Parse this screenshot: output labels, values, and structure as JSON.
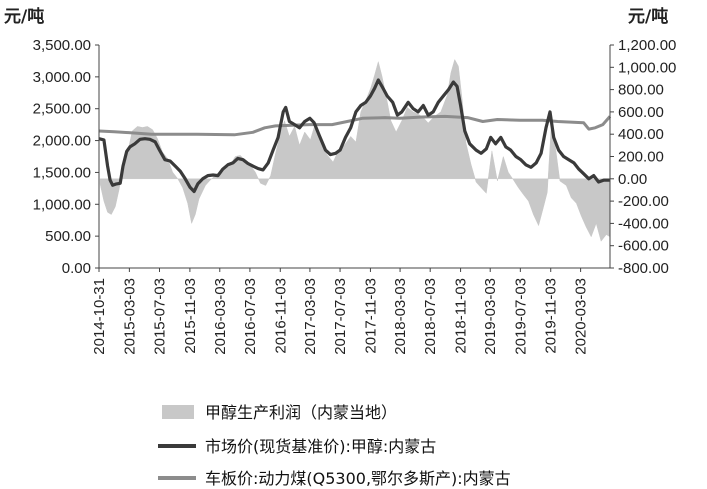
{
  "chart_data": {
    "type": "line",
    "left_unit": "元/吨",
    "right_unit": "元/吨",
    "y_left": {
      "min": 0,
      "max": 3500,
      "ticks": [
        "0.00",
        "500.00",
        "1,000.00",
        "1,500.00",
        "2,000.00",
        "2,500.00",
        "3,000.00",
        "3,500.00"
      ]
    },
    "y_right": {
      "min": -800,
      "max": 1200,
      "ticks": [
        "-800.00",
        "-600.00",
        "-400.00",
        "-200.00",
        "0.00",
        "200.00",
        "400.00",
        "600.00",
        "800.00",
        "1,000.00",
        "1,200.00"
      ]
    },
    "x": {
      "start": "2014-10-31",
      "end": "2020-06-30",
      "tick_labels": [
        "2014-10-31",
        "2015-03-03",
        "2015-07-03",
        "2015-11-03",
        "2016-03-03",
        "2016-07-03",
        "2016-11-03",
        "2017-03-03",
        "2017-07-03",
        "2017-11-03",
        "2018-03-03",
        "2018-07-03",
        "2018-11-03",
        "2019-03-03",
        "2019-07-03",
        "2019-11-03",
        "2020-03-03"
      ]
    },
    "grid": false,
    "legend_position": "bottom",
    "series": [
      {
        "name": "甲醇生产利润（内蒙当地）",
        "kind": "area",
        "axis": "right",
        "color": "#c8c8c8",
        "points": [
          [
            "2014-11-05",
            -50
          ],
          [
            "2014-11-20",
            -200
          ],
          [
            "2014-12-05",
            -300
          ],
          [
            "2014-12-20",
            -320
          ],
          [
            "2015-01-05",
            -250
          ],
          [
            "2015-01-20",
            -100
          ],
          [
            "2015-02-05",
            100
          ],
          [
            "2015-02-25",
            250
          ],
          [
            "2015-03-15",
            430
          ],
          [
            "2015-04-05",
            470
          ],
          [
            "2015-04-25",
            460
          ],
          [
            "2015-05-15",
            470
          ],
          [
            "2015-06-05",
            440
          ],
          [
            "2015-06-25",
            360
          ],
          [
            "2015-07-15",
            240
          ],
          [
            "2015-08-05",
            180
          ],
          [
            "2015-08-25",
            60
          ],
          [
            "2015-09-15",
            0
          ],
          [
            "2015-10-05",
            -80
          ],
          [
            "2015-10-25",
            -220
          ],
          [
            "2015-11-10",
            -400
          ],
          [
            "2015-11-25",
            -320
          ],
          [
            "2015-12-10",
            -180
          ],
          [
            "2016-01-05",
            -60
          ],
          [
            "2016-01-25",
            -10
          ],
          [
            "2016-02-20",
            40
          ],
          [
            "2016-03-15",
            100
          ],
          [
            "2016-04-10",
            110
          ],
          [
            "2016-05-05",
            200
          ],
          [
            "2016-05-25",
            210
          ],
          [
            "2016-06-15",
            160
          ],
          [
            "2016-07-05",
            120
          ],
          [
            "2016-07-25",
            60
          ],
          [
            "2016-08-15",
            -40
          ],
          [
            "2016-09-05",
            -60
          ],
          [
            "2016-09-25",
            30
          ],
          [
            "2016-10-15",
            230
          ],
          [
            "2016-11-05",
            420
          ],
          [
            "2016-11-20",
            520
          ],
          [
            "2016-12-10",
            380
          ],
          [
            "2016-12-31",
            470
          ],
          [
            "2017-01-20",
            300
          ],
          [
            "2017-02-10",
            420
          ],
          [
            "2017-03-05",
            350
          ],
          [
            "2017-03-25",
            500
          ],
          [
            "2017-04-15",
            380
          ],
          [
            "2017-05-10",
            220
          ],
          [
            "2017-06-05",
            150
          ],
          [
            "2017-06-25",
            250
          ],
          [
            "2017-07-20",
            300
          ],
          [
            "2017-08-15",
            380
          ],
          [
            "2017-09-05",
            330
          ],
          [
            "2017-09-25",
            600
          ],
          [
            "2017-10-15",
            700
          ],
          [
            "2017-11-05",
            820
          ],
          [
            "2017-11-20",
            930
          ],
          [
            "2017-12-05",
            1050
          ],
          [
            "2017-12-20",
            920
          ],
          [
            "2018-01-05",
            750
          ],
          [
            "2018-01-25",
            520
          ],
          [
            "2018-02-15",
            420
          ],
          [
            "2018-03-10",
            520
          ],
          [
            "2018-04-01",
            640
          ],
          [
            "2018-04-25",
            600
          ],
          [
            "2018-05-15",
            580
          ],
          [
            "2018-06-05",
            550
          ],
          [
            "2018-06-25",
            500
          ],
          [
            "2018-07-20",
            560
          ],
          [
            "2018-08-15",
            600
          ],
          [
            "2018-09-10",
            750
          ],
          [
            "2018-09-25",
            950
          ],
          [
            "2018-10-10",
            1070
          ],
          [
            "2018-10-25",
            1010
          ],
          [
            "2018-11-10",
            700
          ],
          [
            "2018-11-25",
            320
          ],
          [
            "2018-12-15",
            130
          ],
          [
            "2019-01-05",
            -30
          ],
          [
            "2019-01-25",
            -80
          ],
          [
            "2019-02-15",
            -130
          ],
          [
            "2019-03-10",
            250
          ],
          [
            "2019-04-01",
            -20
          ],
          [
            "2019-04-25",
            200
          ],
          [
            "2019-05-15",
            60
          ],
          [
            "2019-06-05",
            -10
          ],
          [
            "2019-06-25",
            -80
          ],
          [
            "2019-07-15",
            -140
          ],
          [
            "2019-08-05",
            -200
          ],
          [
            "2019-08-25",
            -320
          ],
          [
            "2019-09-15",
            -420
          ],
          [
            "2019-10-05",
            -250
          ],
          [
            "2019-10-20",
            -120
          ],
          [
            "2019-11-05",
            470
          ],
          [
            "2019-11-20",
            320
          ],
          [
            "2019-12-10",
            -20
          ],
          [
            "2020-01-05",
            -60
          ],
          [
            "2020-01-25",
            -170
          ],
          [
            "2020-02-15",
            -220
          ],
          [
            "2020-03-05",
            -330
          ],
          [
            "2020-03-25",
            -430
          ],
          [
            "2020-04-15",
            -520
          ],
          [
            "2020-05-05",
            -400
          ],
          [
            "2020-05-25",
            -560
          ],
          [
            "2020-06-15",
            -500
          ],
          [
            "2020-06-30",
            -520
          ]
        ]
      },
      {
        "name": "市场价(现货基准价):甲醇:内蒙古",
        "kind": "line",
        "axis": "left",
        "color": "#3a3a3a",
        "points": [
          [
            "2014-10-31",
            2030
          ],
          [
            "2014-11-20",
            2010
          ],
          [
            "2014-12-05",
            1600
          ],
          [
            "2014-12-15",
            1380
          ],
          [
            "2014-12-25",
            1300
          ],
          [
            "2015-01-10",
            1320
          ],
          [
            "2015-01-25",
            1330
          ],
          [
            "2015-02-05",
            1600
          ],
          [
            "2015-02-20",
            1830
          ],
          [
            "2015-03-05",
            1900
          ],
          [
            "2015-03-25",
            1950
          ],
          [
            "2015-04-15",
            2020
          ],
          [
            "2015-05-05",
            2030
          ],
          [
            "2015-05-25",
            2020
          ],
          [
            "2015-06-15",
            1980
          ],
          [
            "2015-07-03",
            1850
          ],
          [
            "2015-07-25",
            1700
          ],
          [
            "2015-08-15",
            1680
          ],
          [
            "2015-09-05",
            1600
          ],
          [
            "2015-09-25",
            1520
          ],
          [
            "2015-10-15",
            1400
          ],
          [
            "2015-11-03",
            1270
          ],
          [
            "2015-11-20",
            1200
          ],
          [
            "2015-12-05",
            1320
          ],
          [
            "2015-12-25",
            1400
          ],
          [
            "2016-01-15",
            1450
          ],
          [
            "2016-02-05",
            1460
          ],
          [
            "2016-02-25",
            1450
          ],
          [
            "2016-03-15",
            1550
          ],
          [
            "2016-04-05",
            1620
          ],
          [
            "2016-04-25",
            1650
          ],
          [
            "2016-05-15",
            1720
          ],
          [
            "2016-06-05",
            1700
          ],
          [
            "2016-06-25",
            1640
          ],
          [
            "2016-07-15",
            1600
          ],
          [
            "2016-08-05",
            1560
          ],
          [
            "2016-08-25",
            1540
          ],
          [
            "2016-09-15",
            1650
          ],
          [
            "2016-10-05",
            1850
          ],
          [
            "2016-10-25",
            2050
          ],
          [
            "2016-11-15",
            2450
          ],
          [
            "2016-11-25",
            2520
          ],
          [
            "2016-12-10",
            2300
          ],
          [
            "2016-12-31",
            2250
          ],
          [
            "2017-01-20",
            2200
          ],
          [
            "2017-02-10",
            2300
          ],
          [
            "2017-03-03",
            2350
          ],
          [
            "2017-03-20",
            2280
          ],
          [
            "2017-04-10",
            2080
          ],
          [
            "2017-05-05",
            1850
          ],
          [
            "2017-05-25",
            1780
          ],
          [
            "2017-06-15",
            1800
          ],
          [
            "2017-07-03",
            1850
          ],
          [
            "2017-07-25",
            2050
          ],
          [
            "2017-08-15",
            2200
          ],
          [
            "2017-09-05",
            2450
          ],
          [
            "2017-09-25",
            2550
          ],
          [
            "2017-10-15",
            2600
          ],
          [
            "2017-11-03",
            2700
          ],
          [
            "2017-11-20",
            2820
          ],
          [
            "2017-12-05",
            2950
          ],
          [
            "2017-12-20",
            2850
          ],
          [
            "2018-01-10",
            2700
          ],
          [
            "2018-02-01",
            2600
          ],
          [
            "2018-02-20",
            2400
          ],
          [
            "2018-03-10",
            2450
          ],
          [
            "2018-04-05",
            2600
          ],
          [
            "2018-04-25",
            2500
          ],
          [
            "2018-05-15",
            2450
          ],
          [
            "2018-06-05",
            2550
          ],
          [
            "2018-06-25",
            2400
          ],
          [
            "2018-07-15",
            2450
          ],
          [
            "2018-08-05",
            2600
          ],
          [
            "2018-08-25",
            2700
          ],
          [
            "2018-09-15",
            2800
          ],
          [
            "2018-10-05",
            2920
          ],
          [
            "2018-10-20",
            2850
          ],
          [
            "2018-11-03",
            2550
          ],
          [
            "2018-11-20",
            2150
          ],
          [
            "2018-12-10",
            1950
          ],
          [
            "2019-01-05",
            1850
          ],
          [
            "2019-01-25",
            1800
          ],
          [
            "2019-02-15",
            1870
          ],
          [
            "2019-03-05",
            2050
          ],
          [
            "2019-03-25",
            1950
          ],
          [
            "2019-04-15",
            2050
          ],
          [
            "2019-05-05",
            1900
          ],
          [
            "2019-05-25",
            1850
          ],
          [
            "2019-06-15",
            1750
          ],
          [
            "2019-07-05",
            1700
          ],
          [
            "2019-07-25",
            1620
          ],
          [
            "2019-08-15",
            1580
          ],
          [
            "2019-09-05",
            1650
          ],
          [
            "2019-09-25",
            1800
          ],
          [
            "2019-10-15",
            2200
          ],
          [
            "2019-10-31",
            2450
          ],
          [
            "2019-11-15",
            2050
          ],
          [
            "2019-12-05",
            1850
          ],
          [
            "2019-12-25",
            1750
          ],
          [
            "2020-01-15",
            1700
          ],
          [
            "2020-02-05",
            1650
          ],
          [
            "2020-02-25",
            1550
          ],
          [
            "2020-03-15",
            1480
          ],
          [
            "2020-04-05",
            1400
          ],
          [
            "2020-04-25",
            1450
          ],
          [
            "2020-05-15",
            1350
          ],
          [
            "2020-06-05",
            1380
          ],
          [
            "2020-06-30",
            1380
          ]
        ]
      },
      {
        "name": "车板价:动力煤(Q5300,鄂尔多斯产):内蒙古",
        "kind": "line",
        "axis": "left",
        "color": "#8c8c8c",
        "points": [
          [
            "2014-10-31",
            2150
          ],
          [
            "2015-01-01",
            2140
          ],
          [
            "2015-06-01",
            2100
          ],
          [
            "2015-12-01",
            2100
          ],
          [
            "2016-05-01",
            2090
          ],
          [
            "2016-07-15",
            2130
          ],
          [
            "2016-09-01",
            2200
          ],
          [
            "2016-10-15",
            2230
          ],
          [
            "2017-03-01",
            2250
          ],
          [
            "2017-06-01",
            2250
          ],
          [
            "2017-08-01",
            2300
          ],
          [
            "2017-10-01",
            2350
          ],
          [
            "2018-01-01",
            2360
          ],
          [
            "2018-03-01",
            2350
          ],
          [
            "2018-06-01",
            2370
          ],
          [
            "2018-09-01",
            2380
          ],
          [
            "2018-12-01",
            2360
          ],
          [
            "2019-02-01",
            2300
          ],
          [
            "2019-04-01",
            2330
          ],
          [
            "2019-07-01",
            2320
          ],
          [
            "2019-10-01",
            2320
          ],
          [
            "2019-12-01",
            2300
          ],
          [
            "2020-03-15",
            2280
          ],
          [
            "2020-04-05",
            2180
          ],
          [
            "2020-05-01",
            2200
          ],
          [
            "2020-06-01",
            2250
          ],
          [
            "2020-06-30",
            2380
          ]
        ]
      }
    ]
  }
}
